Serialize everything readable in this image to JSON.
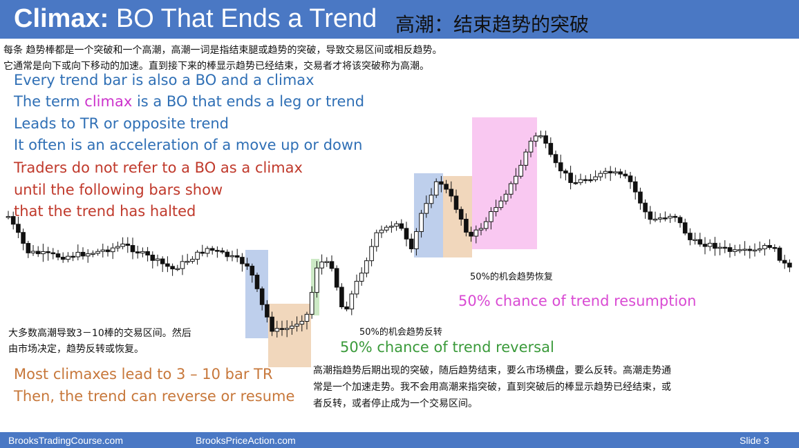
{
  "header": {
    "title_bold": "Climax:",
    "title_rest": "BO That Ends a Trend",
    "title_cn": "高潮：结束趋势的突破"
  },
  "intro_cn": [
    "每条 趋势棒都是一个突破和一个高潮，高潮一词是指结束腿或趋势的突破，导致交易区间或相反趋势。",
    "它通常是向下或向下移动的加速。直到接下来的棒显示趋势已经结束，交易者才将该突破称为高潮。"
  ],
  "bullets": {
    "b1": "Every trend bar is also a BO and a climax",
    "b2_pre": "The term ",
    "b2_key": "climax",
    "b2_post": " is a BO that ends a leg or trend",
    "b3": "Leads to TR or opposite trend",
    "b4": "It often is an acceleration of a move up or down",
    "b5": "Traders do not refer to a BO as a climax",
    "b6": "until the following bars show",
    "b7": "that the trend has halted"
  },
  "annotations": {
    "tr_cn_1": "大多数高潮导致3－10棒的交易区间。然后",
    "tr_cn_2": "由市场决定，趋势反转或恢复。",
    "tr_en_1": "Most climaxes lead to 3 – 10 bar TR",
    "tr_en_2": "Then, the trend can reverse or resume",
    "reversal_cn": "50%的机会趋势反转",
    "reversal_en": "50% chance of trend reversal",
    "resumption_cn": "50%的机会趋势恢复",
    "resumption_en": "50% chance of trend resumption",
    "bottom_cn_1": "高潮指趋势后期出现的突破，随后趋势结束，要么市场横盘，要么反转。高潮走势通",
    "bottom_cn_2": "常是一个加速走势。我不会用高潮来指突破，直到突破后的棒显示趋势已经结束，或",
    "bottom_cn_3": "者反转，或者停止成为一个交易区间。"
  },
  "footer": {
    "left": "BrooksTradingCourse.com",
    "mid": "BrooksPriceAction.com",
    "right": "Slide  3"
  },
  "colors": {
    "title_bar": "#4a78c4",
    "blue_text": "#2f6fb5",
    "red_text": "#c0392b",
    "highlight_blue": "#a8bfe6",
    "highlight_orange": "#ecc9a6",
    "highlight_green": "#bfe3b6",
    "highlight_pink": "#f7b6ec"
  }
}
